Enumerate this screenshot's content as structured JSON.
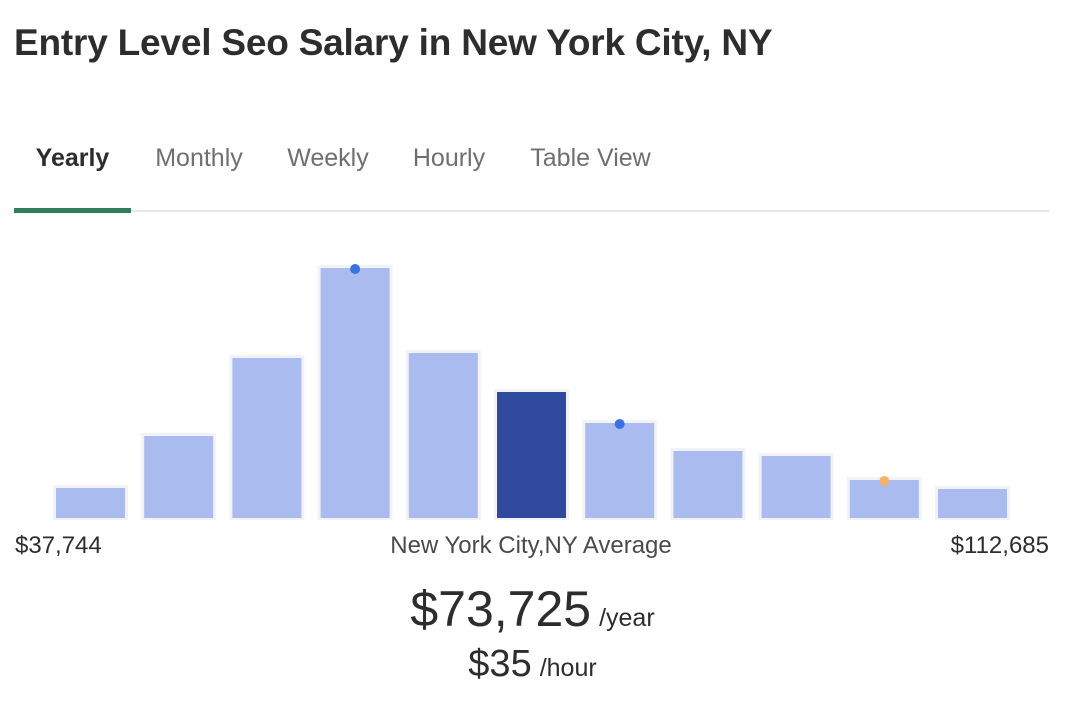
{
  "title": "Entry Level Seo Salary in New York City, NY",
  "tabs": [
    {
      "label": "Yearly",
      "active": true
    },
    {
      "label": "Monthly",
      "active": false
    },
    {
      "label": "Weekly",
      "active": false
    },
    {
      "label": "Hourly",
      "active": false
    },
    {
      "label": "Table View",
      "active": false
    }
  ],
  "colors": {
    "bar": "#aabcef",
    "highlight_bar": "#2f4a9e",
    "marker_blue": "#3a73e0",
    "marker_orange": "#f2b36a",
    "tab_underline": "#2e7d5b"
  },
  "chart_data": {
    "type": "bar",
    "bin_count": 11,
    "values": [
      30,
      82,
      160,
      250,
      165,
      126,
      95,
      67,
      62,
      38,
      29
    ],
    "highlight_index": 5,
    "markers": [
      {
        "bar_index": 3,
        "color": "blue"
      },
      {
        "bar_index": 6,
        "color": "blue"
      },
      {
        "bar_index": 9,
        "color": "orange"
      }
    ],
    "x_min_label": "$37,744",
    "x_max_label": "$112,685",
    "center_label": "New York City,NY Average",
    "grid": false
  },
  "summary": {
    "yearly_value": "$73,725",
    "yearly_unit": "/year",
    "hourly_value": "$35",
    "hourly_unit": "/hour"
  }
}
